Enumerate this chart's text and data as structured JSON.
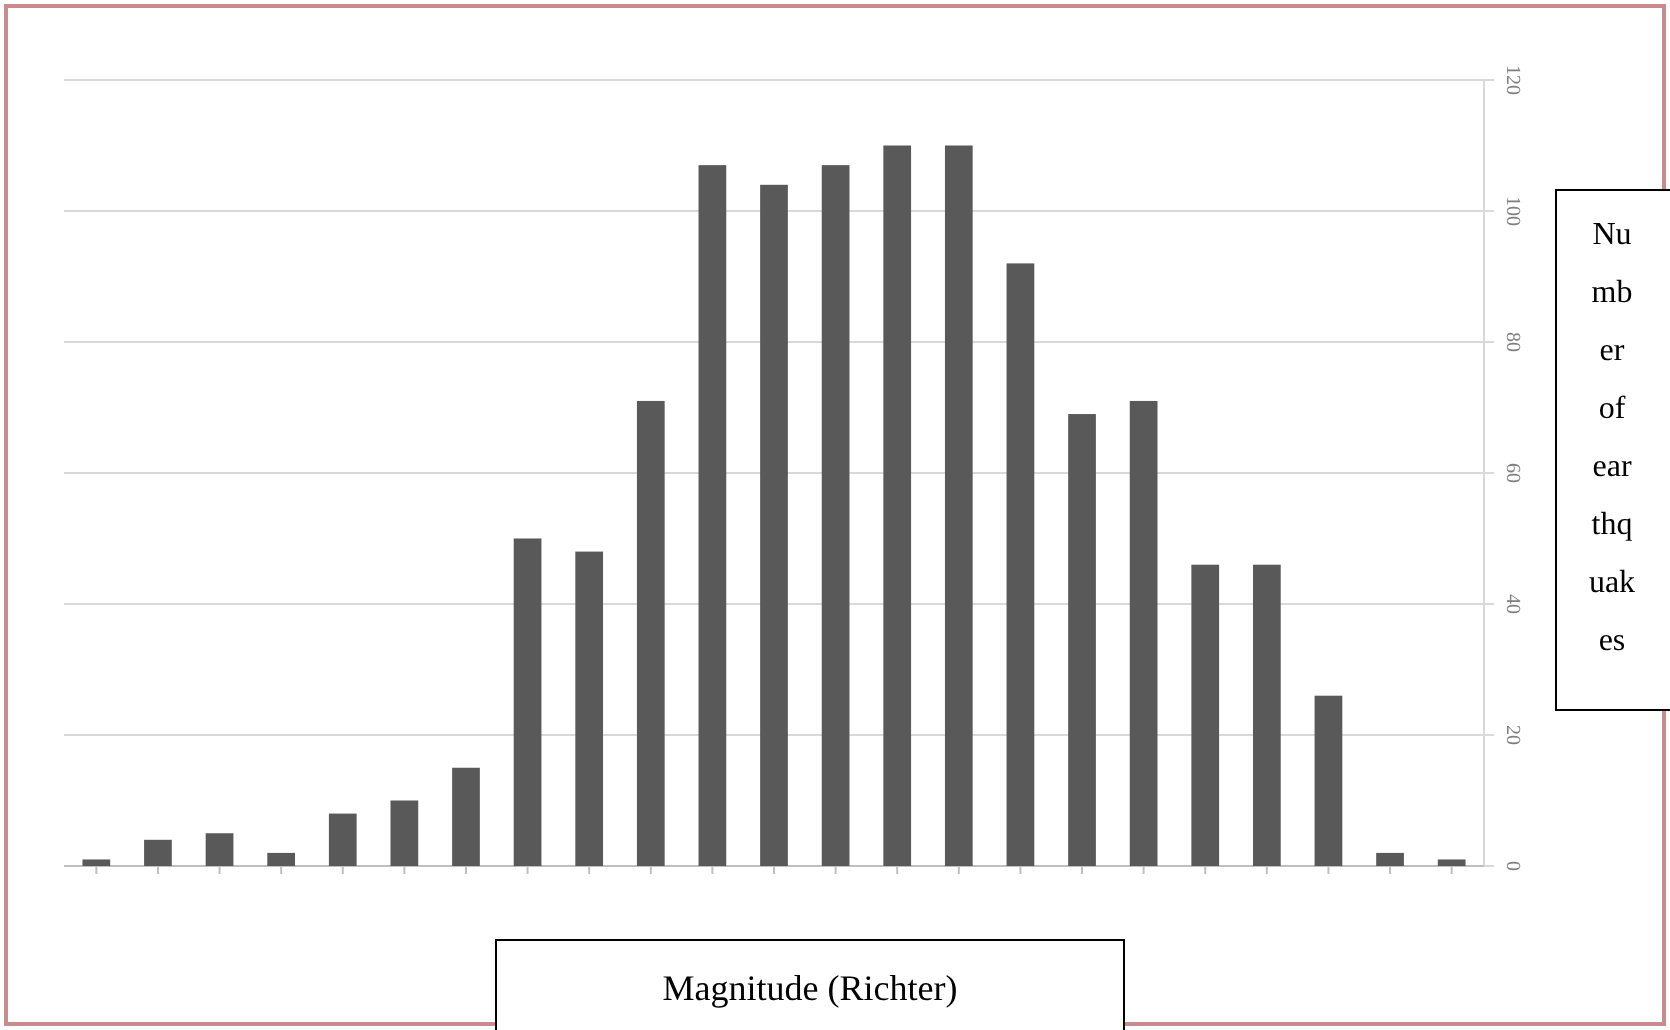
{
  "chart_data": {
    "type": "bar",
    "xlabel": "Magnitude (Richter)",
    "ylabel": "Number of earthquakes",
    "categories": [
      null,
      null,
      null,
      null,
      null,
      null,
      null,
      null,
      null,
      null,
      null,
      null,
      null,
      null,
      null,
      null,
      null,
      null,
      null,
      null,
      null,
      null,
      null
    ],
    "values": [
      1,
      4,
      5,
      2,
      8,
      10,
      15,
      50,
      48,
      71,
      107,
      104,
      107,
      110,
      110,
      92,
      69,
      71,
      46,
      46,
      26,
      2,
      1
    ],
    "color": "#595959",
    "ylim": [
      0,
      120
    ],
    "yticks": [
      0,
      20,
      40,
      60,
      80,
      100,
      120
    ],
    "grid": "y"
  }
}
